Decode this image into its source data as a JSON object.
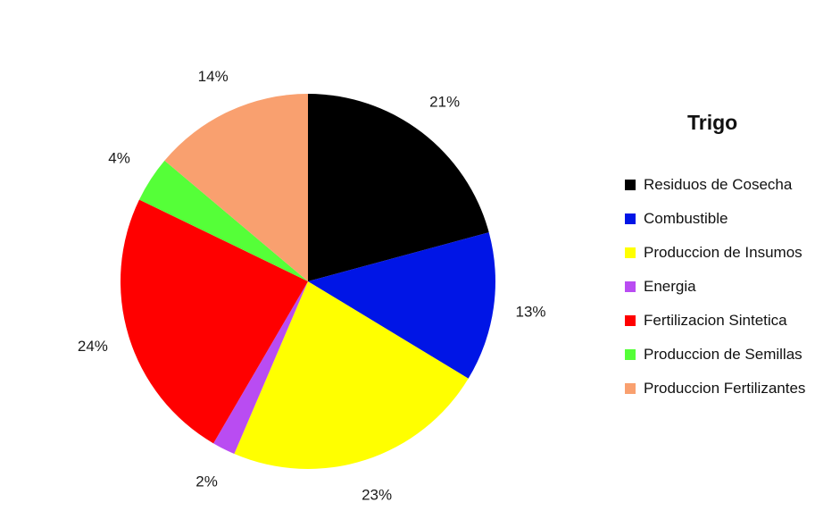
{
  "chart_data": {
    "type": "pie",
    "title": "Trigo",
    "legend_position": "right",
    "slices": [
      {
        "label": "Residuos de Cosecha",
        "value": 21,
        "display": "21%",
        "color": "#000000"
      },
      {
        "label": "Combustible",
        "value": 13,
        "display": "13%",
        "color": "#0015e6"
      },
      {
        "label": "Produccion de Insumos",
        "value": 23,
        "display": "23%",
        "color": "#ffff00"
      },
      {
        "label": "Energia",
        "value": 2,
        "display": "2%",
        "color": "#b94cf2"
      },
      {
        "label": "Fertilizacion Sintetica",
        "value": 24,
        "display": "24%",
        "color": "#ff0000"
      },
      {
        "label": "Produccion de Semillas",
        "value": 4,
        "display": "4%",
        "color": "#55ff38"
      },
      {
        "label": "Produccion Fertilizantes",
        "value": 14,
        "display": "14%",
        "color": "#f9a06f"
      }
    ]
  }
}
